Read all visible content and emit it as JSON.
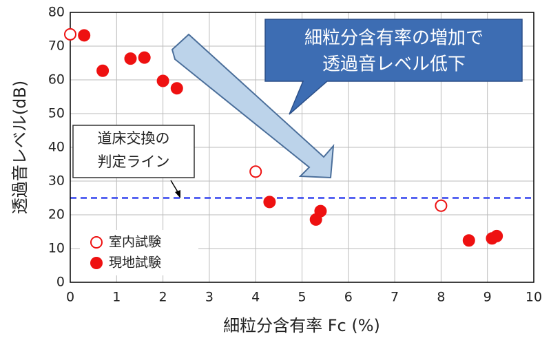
{
  "chart_data": {
    "type": "scatter",
    "xlabel": "細粒分含有率 Fc (%)",
    "ylabel": "透過音レベル(dB)",
    "xlim": [
      0,
      10
    ],
    "xticks": [
      0,
      1,
      2,
      3,
      4,
      5,
      6,
      7,
      8,
      9,
      10
    ],
    "ylim": [
      0,
      80
    ],
    "yticks": [
      0,
      10,
      20,
      30,
      40,
      50,
      60,
      70,
      80
    ],
    "grid": true,
    "legend": "bottom-left",
    "threshold": 25,
    "threshold_color": "#3344ee",
    "series": [
      {
        "name": "室内試験",
        "color": "#ee1111",
        "marker": "open",
        "x": [
          0,
          4,
          8
        ],
        "values": [
          73.5,
          32.8,
          22.7
        ]
      },
      {
        "name": "現地試験",
        "color": "#ee1111",
        "marker": "filled",
        "x": [
          0.3,
          0.7,
          1.3,
          1.6,
          2.0,
          2.3,
          4.3,
          5.3,
          5.4,
          8.6,
          9.1,
          9.2
        ],
        "values": [
          73.2,
          62.7,
          66.3,
          66.6,
          59.7,
          57.5,
          23.8,
          18.6,
          21.1,
          12.4,
          13.0,
          13.7
        ]
      }
    ],
    "annotations": [
      "細粒分含有率の増加で",
      "透過音レベル低下",
      "道床交換の",
      "判定ライン"
    ]
  }
}
